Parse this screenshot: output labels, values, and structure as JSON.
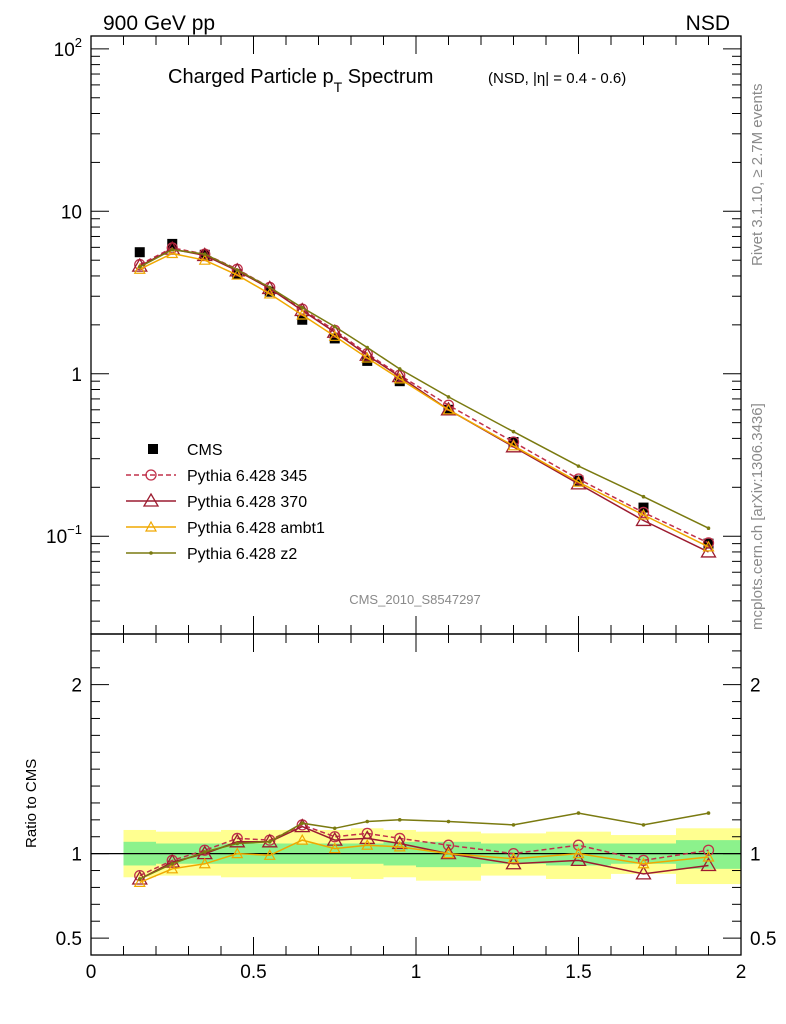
{
  "header": {
    "left": "900 GeV pp",
    "right": "NSD"
  },
  "title": {
    "main": "Charged Particle p",
    "sub": "T",
    "main_end": " Spectrum",
    "qualifier": "(NSD, |η| = 0.4 - 0.6)"
  },
  "side_labels": {
    "top": "Rivet 3.1.10, ≥ 2.7M events",
    "bottom": "mcplots.cern.ch [arXiv:1306.3436]"
  },
  "watermark": "CMS_2010_S8547297",
  "colors": {
    "cms": "#000000",
    "p345": "#c0304a",
    "p370": "#9c1c30",
    "ambt1": "#f0a800",
    "z2": "#7a7a10",
    "band_inner": "#8cf28c",
    "band_outer": "#ffff90"
  },
  "chart_data": [
    {
      "type": "scatter",
      "scale": "log",
      "ylim": [
        0.025,
        120
      ],
      "xlim": [
        0,
        2.0
      ],
      "y_ticks": [
        {
          "v": 0.1,
          "label": "10",
          "exp": "−1"
        },
        {
          "v": 1,
          "label": "1",
          "exp": ""
        },
        {
          "v": 10,
          "label": "10",
          "exp": ""
        },
        {
          "v": 100,
          "label": "10",
          "exp": "2"
        }
      ],
      "series": [
        {
          "name": "CMS",
          "key": "cms",
          "marker": "square",
          "x": [
            0.15,
            0.25,
            0.35,
            0.45,
            0.55,
            0.65,
            0.75,
            0.85,
            0.95,
            1.1,
            1.3,
            1.5,
            1.7,
            1.9
          ],
          "values": [
            5.6,
            6.3,
            5.4,
            4.1,
            3.2,
            2.15,
            1.65,
            1.2,
            0.9,
            0.6,
            0.38,
            0.22,
            0.15,
            0.09
          ]
        },
        {
          "name": "Pythia 6.428 345",
          "key": "p345",
          "marker": "circle",
          "dashed": true,
          "x": [
            0.15,
            0.25,
            0.35,
            0.45,
            0.55,
            0.65,
            0.75,
            0.85,
            0.95,
            1.1,
            1.3,
            1.5,
            1.7,
            1.9
          ],
          "values": [
            4.7,
            5.95,
            5.45,
            4.4,
            3.4,
            2.5,
            1.85,
            1.33,
            0.98,
            0.64,
            0.38,
            0.225,
            0.14,
            0.091
          ]
        },
        {
          "name": "Pythia 6.428 370",
          "key": "p370",
          "marker": "triangle",
          "x": [
            0.15,
            0.25,
            0.35,
            0.45,
            0.55,
            0.65,
            0.75,
            0.85,
            0.95,
            1.1,
            1.3,
            1.5,
            1.7,
            1.9
          ],
          "values": [
            4.6,
            5.85,
            5.35,
            4.3,
            3.35,
            2.45,
            1.8,
            1.3,
            0.96,
            0.6,
            0.355,
            0.21,
            0.125,
            0.08
          ]
        },
        {
          "name": "Pythia 6.428 ambt1",
          "key": "ambt1",
          "marker": "triangle-small",
          "x": [
            0.15,
            0.25,
            0.35,
            0.45,
            0.55,
            0.65,
            0.75,
            0.85,
            0.95,
            1.1,
            1.3,
            1.5,
            1.7,
            1.9
          ],
          "values": [
            4.4,
            5.5,
            5.0,
            4.05,
            3.1,
            2.3,
            1.7,
            1.25,
            0.93,
            0.6,
            0.36,
            0.215,
            0.135,
            0.086
          ]
        },
        {
          "name": "Pythia 6.428 z2",
          "key": "z2",
          "marker": "dot",
          "x": [
            0.15,
            0.25,
            0.35,
            0.45,
            0.55,
            0.65,
            0.75,
            0.85,
            0.95,
            1.1,
            1.3,
            1.5,
            1.7,
            1.9
          ],
          "values": [
            4.55,
            5.8,
            5.45,
            4.35,
            3.4,
            2.55,
            1.95,
            1.45,
            1.07,
            0.72,
            0.44,
            0.27,
            0.175,
            0.112
          ]
        }
      ]
    },
    {
      "type": "line",
      "ylabel": "Ratio to CMS",
      "ylim": [
        0.4,
        2.3
      ],
      "xlim": [
        0,
        2.0
      ],
      "x_ticks": [
        "0",
        "0.5",
        "1",
        "1.5",
        "2"
      ],
      "x_tick_values": [
        0,
        0.5,
        1,
        1.5,
        2
      ],
      "y_ticks": [
        "0.5",
        "1",
        "2"
      ],
      "y_tick_values": [
        0.5,
        1,
        2
      ],
      "bands": {
        "edges": [
          0.1,
          0.2,
          0.3,
          0.4,
          0.5,
          0.6,
          0.7,
          0.8,
          0.9,
          1.0,
          1.2,
          1.4,
          1.6,
          1.8,
          2.0
        ],
        "inner_lo": [
          0.93,
          0.94,
          0.94,
          0.94,
          0.94,
          0.94,
          0.94,
          0.94,
          0.93,
          0.92,
          0.94,
          0.93,
          0.94,
          0.91
        ],
        "inner_hi": [
          1.07,
          1.06,
          1.06,
          1.06,
          1.06,
          1.06,
          1.06,
          1.06,
          1.07,
          1.07,
          1.06,
          1.06,
          1.06,
          1.08
        ],
        "outer_lo": [
          0.86,
          0.87,
          0.87,
          0.86,
          0.86,
          0.86,
          0.86,
          0.85,
          0.86,
          0.84,
          0.87,
          0.85,
          0.88,
          0.82
        ],
        "outer_hi": [
          1.14,
          1.13,
          1.13,
          1.14,
          1.14,
          1.14,
          1.14,
          1.15,
          1.14,
          1.13,
          1.12,
          1.13,
          1.11,
          1.15
        ]
      },
      "series": [
        {
          "name": "Pythia 6.428 345",
          "key": "p345",
          "values": [
            0.87,
            0.96,
            1.02,
            1.09,
            1.08,
            1.17,
            1.1,
            1.12,
            1.09,
            1.05,
            1.0,
            1.05,
            0.96,
            1.02
          ]
        },
        {
          "name": "Pythia 6.428 370",
          "key": "p370",
          "values": [
            0.85,
            0.95,
            1.0,
            1.07,
            1.07,
            1.16,
            1.08,
            1.09,
            1.06,
            1.0,
            0.94,
            0.96,
            0.88,
            0.93
          ]
        },
        {
          "name": "Pythia 6.428 ambt1",
          "key": "ambt1",
          "values": [
            0.83,
            0.91,
            0.94,
            1.0,
            0.99,
            1.08,
            1.03,
            1.05,
            1.04,
            1.0,
            0.97,
            1.0,
            0.94,
            0.98
          ]
        },
        {
          "name": "Pythia 6.428 z2",
          "key": "z2",
          "values": [
            0.85,
            0.94,
            1.01,
            1.06,
            1.07,
            1.18,
            1.15,
            1.19,
            1.2,
            1.19,
            1.17,
            1.24,
            1.17,
            1.24
          ]
        }
      ]
    }
  ],
  "legend": [
    {
      "label": "CMS",
      "key": "cms"
    },
    {
      "label": "Pythia 6.428 345",
      "key": "p345"
    },
    {
      "label": "Pythia 6.428 370",
      "key": "p370"
    },
    {
      "label": "Pythia 6.428 ambt1",
      "key": "ambt1"
    },
    {
      "label": "Pythia 6.428 z2",
      "key": "z2"
    }
  ]
}
